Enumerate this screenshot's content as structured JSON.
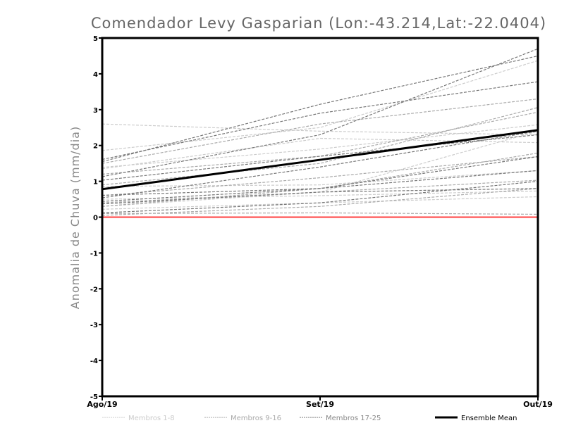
{
  "chart_data": {
    "type": "line",
    "title": "Comendador Levy Gasparian (Lon:-43.214,Lat:-22.0404)",
    "xlabel": "",
    "ylabel": "Anomalia de Chuva (mm/dia)",
    "categories": [
      "Ago/19",
      "Set/19",
      "Out/19"
    ],
    "ylim": [
      -5,
      5
    ],
    "yticks": [
      -5,
      -4,
      -3,
      -2,
      -1,
      0,
      1,
      2,
      3,
      4,
      5
    ],
    "grid": false,
    "legend_position": "bottom",
    "zero_line_color": "#ff4040",
    "groups": [
      {
        "name": "Membros 1-8",
        "color": "#cccccc",
        "series": [
          [
            2.6,
            2.4,
            2.3
          ],
          [
            1.86,
            2.5,
            4.37
          ],
          [
            1.39,
            1.9,
            2.58
          ],
          [
            1.35,
            2.2,
            2.08
          ],
          [
            0.86,
            0.9,
            1.3
          ],
          [
            0.22,
            0.4,
            0.57
          ],
          [
            0.3,
            0.7,
            2.4
          ],
          [
            0.5,
            0.6,
            0.73
          ]
        ]
      },
      {
        "name": "Membros 9-16",
        "color": "#aaaaaa",
        "series": [
          [
            1.5,
            2.6,
            3.3
          ],
          [
            1.2,
            1.7,
            2.93
          ],
          [
            0.4,
            0.7,
            1.03
          ],
          [
            0.6,
            1.1,
            1.69
          ],
          [
            0.1,
            0.12,
            0.08
          ],
          [
            0.05,
            0.3,
            0.8
          ],
          [
            0.9,
            1.5,
            3.06
          ],
          [
            0.3,
            0.8,
            1.79
          ]
        ]
      },
      {
        "name": "Membros 17-25",
        "color": "#777777",
        "series": [
          [
            1.55,
            3.15,
            4.5
          ],
          [
            1.61,
            2.9,
            3.78
          ],
          [
            1.13,
            2.3,
            4.7
          ],
          [
            1.03,
            1.7,
            2.3
          ],
          [
            0.61,
            0.8,
            1.69
          ],
          [
            0.54,
            1.4,
            2.4
          ],
          [
            0.44,
            0.8,
            1.3
          ],
          [
            0.37,
            0.7,
            0.8
          ],
          [
            0.12,
            0.4,
            1.0
          ]
        ]
      }
    ],
    "ensemble_mean": {
      "name": "Ensemble Mean",
      "color": "#000000",
      "values": [
        0.78,
        1.6,
        2.43
      ]
    }
  }
}
